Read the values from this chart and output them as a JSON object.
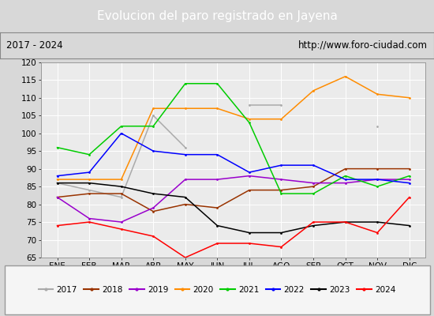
{
  "title": "Evolucion del paro registrado en Jayena",
  "subtitle_left": "2017 - 2024",
  "subtitle_right": "http://www.foro-ciudad.com",
  "months": [
    "ENE",
    "FEB",
    "MAR",
    "ABR",
    "MAY",
    "JUN",
    "JUL",
    "AGO",
    "SEP",
    "OCT",
    "NOV",
    "DIC"
  ],
  "ylim": [
    65,
    120
  ],
  "yticks": [
    65,
    70,
    75,
    80,
    85,
    90,
    95,
    100,
    105,
    110,
    115,
    120
  ],
  "series": {
    "2017": {
      "color": "#aaaaaa",
      "data": [
        86,
        84,
        82,
        105,
        96,
        null,
        108,
        108,
        null,
        null,
        102,
        null
      ]
    },
    "2018": {
      "color": "#993300",
      "data": [
        82,
        83,
        83,
        78,
        80,
        79,
        84,
        84,
        85,
        90,
        90,
        90
      ]
    },
    "2019": {
      "color": "#9900CC",
      "data": [
        82,
        76,
        75,
        79,
        87,
        87,
        88,
        87,
        86,
        86,
        87,
        87
      ]
    },
    "2020": {
      "color": "#FF8C00",
      "data": [
        87,
        87,
        87,
        107,
        107,
        107,
        104,
        104,
        112,
        116,
        111,
        110
      ]
    },
    "2021": {
      "color": "#00CC00",
      "data": [
        96,
        94,
        102,
        102,
        114,
        114,
        103,
        83,
        83,
        88,
        85,
        88
      ]
    },
    "2022": {
      "color": "#0000FF",
      "data": [
        88,
        89,
        100,
        95,
        94,
        94,
        89,
        91,
        91,
        87,
        87,
        86
      ]
    },
    "2023": {
      "color": "#000000",
      "data": [
        86,
        86,
        85,
        83,
        82,
        74,
        72,
        72,
        74,
        75,
        75,
        74
      ]
    },
    "2024": {
      "color": "#FF0000",
      "data": [
        74,
        75,
        73,
        71,
        65,
        69,
        69,
        68,
        75,
        75,
        72,
        82
      ]
    }
  },
  "legend_order": [
    "2017",
    "2018",
    "2019",
    "2020",
    "2021",
    "2022",
    "2023",
    "2024"
  ],
  "title_bg_color": "#4472C4",
  "title_font_color": "#FFFFFF",
  "subtitle_bg_color": "#D8D8D8",
  "plot_bg_color": "#EBEBEB",
  "grid_color": "#FFFFFF"
}
